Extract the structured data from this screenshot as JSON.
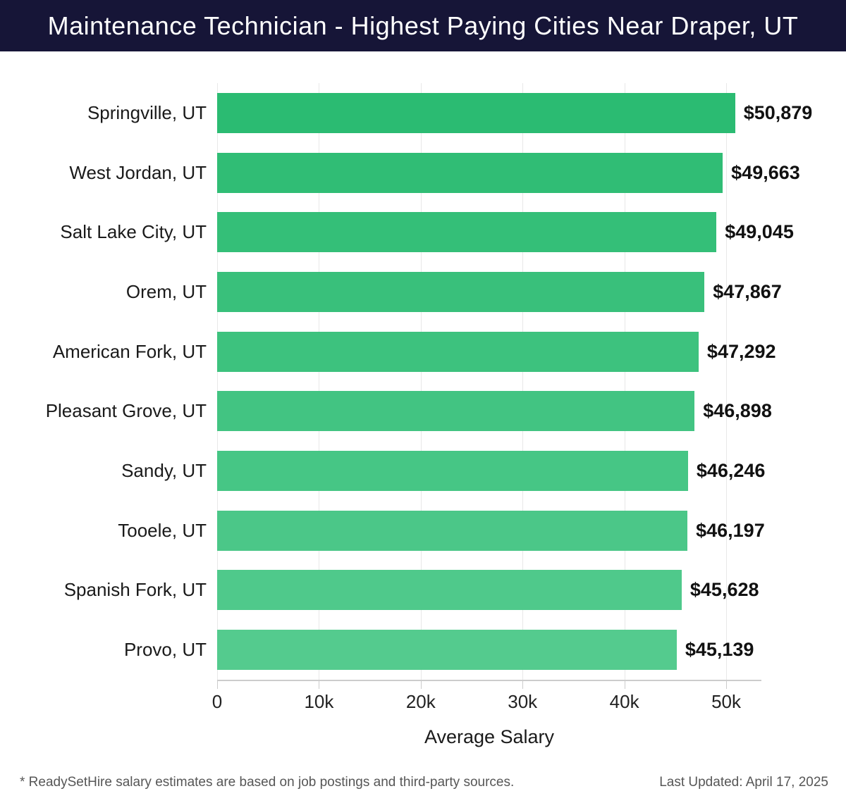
{
  "header": {
    "title": "Maintenance Technician - Highest Paying Cities Near Draper, UT"
  },
  "chart_data": {
    "type": "bar",
    "orientation": "horizontal",
    "title": "Maintenance Technician - Highest Paying Cities Near Draper, UT",
    "categories": [
      "Springville, UT",
      "West Jordan, UT",
      "Salt Lake City, UT",
      "Orem, UT",
      "American Fork, UT",
      "Pleasant Grove, UT",
      "Sandy, UT",
      "Tooele, UT",
      "Spanish Fork, UT",
      "Provo, UT"
    ],
    "values": [
      50879,
      49663,
      49045,
      47867,
      47292,
      46898,
      46246,
      46197,
      45628,
      45139
    ],
    "value_labels": [
      "$50,879",
      "$49,663",
      "$49,045",
      "$47,867",
      "$47,292",
      "$46,898",
      "$46,246",
      "$46,197",
      "$45,628",
      "$45,139"
    ],
    "bar_colors": [
      "#2bbb72",
      "#30bd75",
      "#34bf78",
      "#39c07b",
      "#3dc27e",
      "#42c482",
      "#46c685",
      "#4bc788",
      "#4fc98b",
      "#54cb8e"
    ],
    "xlabel": "Average Salary",
    "ylabel": "",
    "x_ticks": [
      {
        "label": "0",
        "value": 0
      },
      {
        "label": "10k",
        "value": 10000
      },
      {
        "label": "20k",
        "value": 20000
      },
      {
        "label": "30k",
        "value": 30000
      },
      {
        "label": "40k",
        "value": 40000
      },
      {
        "label": "50k",
        "value": 50000
      }
    ],
    "xlim": [
      0,
      53460
    ],
    "grid": true,
    "legend": false
  },
  "footer": {
    "note": "* ReadySetHire salary estimates are based on job postings and third-party sources.",
    "last_updated": "Last Updated: April 17, 2025"
  },
  "colors": {
    "header_bg": "#161537",
    "grid": "#e8e8e8",
    "axis": "#cccccc"
  }
}
